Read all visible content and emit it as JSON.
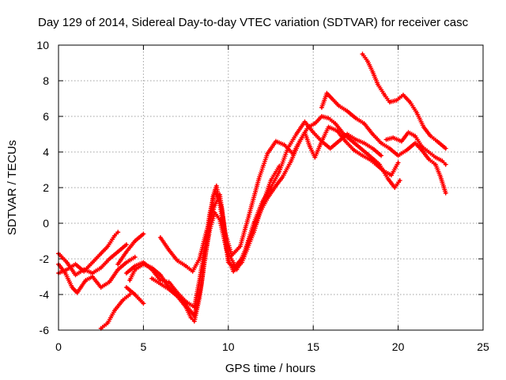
{
  "chart_data": {
    "type": "scatter",
    "title": "Day 129 of 2014, Sidereal Day-to-day VTEC variation (SDTVAR) for receiver casc",
    "xlabel": "GPS time / hours",
    "ylabel": "SDTVAR / TECUs",
    "xlim": [
      0,
      25
    ],
    "ylim": [
      -6,
      10
    ],
    "xticks": [
      "0",
      "5",
      "10",
      "15",
      "20",
      "25"
    ],
    "yticks": [
      "-6",
      "-4",
      "-2",
      "0",
      "2",
      "4",
      "6",
      "8",
      "10"
    ],
    "grid": true,
    "marker": "plus",
    "color": "#ff0000",
    "series": [
      {
        "points": [
          [
            0,
            -1.7
          ],
          [
            0.5,
            -2.2
          ],
          [
            1,
            -2.9
          ],
          [
            1.5,
            -2.6
          ],
          [
            2,
            -2.8
          ],
          [
            2.5,
            -2.5
          ],
          [
            3,
            -2.0
          ],
          [
            3.5,
            -1.6
          ],
          [
            4,
            -1.2
          ]
        ]
      },
      {
        "points": [
          [
            0,
            -2.3
          ],
          [
            0.4,
            -2.8
          ],
          [
            0.8,
            -3.6
          ],
          [
            1.1,
            -3.9
          ],
          [
            1.6,
            -3.2
          ],
          [
            2,
            -3.0
          ],
          [
            2.5,
            -3.6
          ],
          [
            3,
            -3.3
          ],
          [
            3.5,
            -2.6
          ],
          [
            4,
            -2.2
          ],
          [
            4.5,
            -1.9
          ]
        ]
      },
      {
        "points": [
          [
            0,
            -2.8
          ],
          [
            0.5,
            -2.6
          ],
          [
            1,
            -2.3
          ],
          [
            1.5,
            -2.7
          ],
          [
            2,
            -2.2
          ],
          [
            2.5,
            -1.7
          ],
          [
            2.9,
            -1.3
          ],
          [
            3.3,
            -0.7
          ],
          [
            3.5,
            -0.5
          ]
        ]
      },
      {
        "points": [
          [
            2.5,
            -5.9
          ],
          [
            2.9,
            -5.6
          ],
          [
            3.3,
            -4.9
          ],
          [
            3.8,
            -4.3
          ],
          [
            4.2,
            -4.0
          ]
        ]
      },
      {
        "points": [
          [
            4,
            -3.6
          ],
          [
            4.5,
            -4.0
          ],
          [
            5,
            -4.5
          ]
        ]
      },
      {
        "points": [
          [
            4,
            -2.8
          ],
          [
            4.5,
            -2.4
          ],
          [
            5,
            -2.2
          ],
          [
            5.5,
            -2.6
          ],
          [
            6,
            -3.2
          ],
          [
            6.5,
            -3.3
          ],
          [
            7,
            -3.9
          ],
          [
            7.5,
            -4.4
          ],
          [
            8,
            -4.7
          ],
          [
            8.3,
            -3.2
          ],
          [
            8.6,
            -1.5
          ],
          [
            8.9,
            0.5
          ],
          [
            9.2,
            1.8
          ],
          [
            9.6,
            0.9
          ],
          [
            10,
            -2.0
          ],
          [
            10.3,
            -2.7
          ],
          [
            10.8,
            -2.2
          ],
          [
            11.5,
            -0.5
          ],
          [
            12,
            1.0
          ],
          [
            12.5,
            2.4
          ],
          [
            13,
            3.2
          ]
        ]
      },
      {
        "points": [
          [
            3.5,
            -2.3
          ],
          [
            4,
            -1.6
          ],
          [
            4.5,
            -1.0
          ],
          [
            5,
            -0.6
          ]
        ]
      },
      {
        "points": [
          [
            4.2,
            -3.2
          ],
          [
            4.5,
            -2.6
          ],
          [
            5,
            -2.3
          ],
          [
            5.5,
            -2.5
          ],
          [
            6,
            -2.9
          ],
          [
            6.5,
            -3.6
          ],
          [
            7,
            -4.0
          ],
          [
            7.5,
            -4.6
          ],
          [
            8,
            -5.2
          ],
          [
            8.4,
            -3.5
          ],
          [
            8.8,
            -0.8
          ],
          [
            9.1,
            1.5
          ],
          [
            9.3,
            2.1
          ],
          [
            9.7,
            0.0
          ],
          [
            10,
            -2.2
          ],
          [
            10.5,
            -2.6
          ],
          [
            11,
            -1.5
          ],
          [
            11.5,
            0.0
          ],
          [
            12,
            1.2
          ],
          [
            12.5,
            2.0
          ],
          [
            13,
            2.9
          ],
          [
            13.5,
            4.2
          ],
          [
            14,
            5.0
          ],
          [
            14.5,
            5.7
          ],
          [
            15,
            5.1
          ],
          [
            15.5,
            4.6
          ],
          [
            16,
            4.2
          ],
          [
            16.5,
            4.6
          ],
          [
            17,
            5.0
          ],
          [
            17.5,
            4.7
          ],
          [
            18,
            4.5
          ],
          [
            18.5,
            4.2
          ],
          [
            19,
            3.8
          ]
        ]
      },
      {
        "points": [
          [
            6,
            -0.8
          ],
          [
            6.5,
            -1.5
          ],
          [
            7,
            -2.1
          ],
          [
            7.5,
            -2.4
          ],
          [
            7.9,
            -2.7
          ],
          [
            8.3,
            -2.0
          ],
          [
            8.7,
            -0.5
          ],
          [
            9.2,
            1.0
          ],
          [
            9.5,
            1.6
          ],
          [
            9.8,
            -0.5
          ],
          [
            10.2,
            -1.8
          ],
          [
            10.7,
            -1.3
          ],
          [
            11.2,
            0.4
          ],
          [
            11.8,
            2.5
          ],
          [
            12.3,
            3.9
          ],
          [
            12.8,
            4.6
          ],
          [
            13.3,
            4.4
          ],
          [
            13.8,
            3.9
          ],
          [
            14.2,
            4.6
          ],
          [
            14.7,
            5.4
          ],
          [
            15.1,
            5.6
          ],
          [
            15.5,
            6.0
          ],
          [
            15.9,
            5.9
          ],
          [
            16.3,
            5.6
          ],
          [
            16.8,
            5.0
          ],
          [
            17.3,
            4.6
          ],
          [
            17.8,
            4.2
          ],
          [
            18.3,
            3.8
          ],
          [
            18.9,
            3.3
          ],
          [
            19.4,
            2.5
          ],
          [
            19.8,
            2.0
          ],
          [
            20.1,
            2.4
          ]
        ]
      },
      {
        "points": [
          [
            5.5,
            -3.1
          ],
          [
            6,
            -3.4
          ],
          [
            6.5,
            -3.7
          ],
          [
            7,
            -4.1
          ],
          [
            7.5,
            -4.7
          ],
          [
            7.8,
            -5.3
          ],
          [
            8,
            -5.5
          ],
          [
            8.3,
            -4.2
          ],
          [
            8.6,
            -2.0
          ],
          [
            8.9,
            -0.4
          ],
          [
            9.2,
            0.6
          ],
          [
            9.5,
            0.2
          ],
          [
            9.9,
            -1.5
          ],
          [
            10.4,
            -2.4
          ],
          [
            10.8,
            -2.0
          ],
          [
            11.3,
            -0.8
          ],
          [
            11.8,
            0.5
          ],
          [
            12.3,
            1.4
          ],
          [
            12.8,
            2.1
          ],
          [
            13.2,
            2.6
          ],
          [
            13.7,
            3.5
          ],
          [
            14.1,
            4.4
          ],
          [
            14.5,
            5.1
          ],
          [
            14.8,
            4.3
          ],
          [
            15.1,
            3.7
          ],
          [
            15.5,
            4.6
          ],
          [
            15.9,
            5.4
          ],
          [
            16.4,
            5.2
          ],
          [
            16.9,
            4.6
          ],
          [
            17.4,
            4.1
          ],
          [
            17.9,
            3.8
          ],
          [
            18.3,
            3.6
          ],
          [
            18.7,
            3.3
          ],
          [
            19.2,
            2.9
          ],
          [
            19.6,
            2.7
          ],
          [
            20,
            3.4
          ]
        ]
      },
      {
        "points": [
          [
            15.5,
            6.5
          ],
          [
            15.8,
            7.3
          ],
          [
            16.1,
            7.0
          ],
          [
            16.5,
            6.6
          ],
          [
            17,
            6.3
          ],
          [
            17.5,
            5.9
          ],
          [
            18,
            5.6
          ],
          [
            18.5,
            5.0
          ],
          [
            19,
            4.5
          ],
          [
            19.5,
            4.2
          ],
          [
            20,
            3.8
          ],
          [
            20.5,
            4.1
          ],
          [
            21,
            4.5
          ],
          [
            21.4,
            4.1
          ],
          [
            21.8,
            3.6
          ],
          [
            22.2,
            3.3
          ],
          [
            22.5,
            2.6
          ],
          [
            22.8,
            1.7
          ]
        ]
      },
      {
        "points": [
          [
            17.9,
            9.5
          ],
          [
            18.2,
            9.1
          ],
          [
            18.5,
            8.5
          ],
          [
            18.8,
            7.8
          ],
          [
            19.2,
            7.2
          ],
          [
            19.5,
            6.8
          ],
          [
            19.9,
            6.9
          ],
          [
            20.3,
            7.2
          ],
          [
            20.7,
            6.8
          ],
          [
            21.1,
            6.2
          ],
          [
            21.5,
            5.4
          ],
          [
            21.9,
            4.9
          ],
          [
            22.3,
            4.6
          ],
          [
            22.8,
            4.2
          ]
        ]
      },
      {
        "points": [
          [
            19.3,
            4.7
          ],
          [
            19.7,
            4.8
          ],
          [
            20.2,
            4.6
          ],
          [
            20.6,
            5.1
          ],
          [
            21,
            4.9
          ],
          [
            21.4,
            4.3
          ],
          [
            21.8,
            4.0
          ],
          [
            22.2,
            3.7
          ],
          [
            22.6,
            3.5
          ],
          [
            22.8,
            3.3
          ]
        ]
      }
    ]
  }
}
